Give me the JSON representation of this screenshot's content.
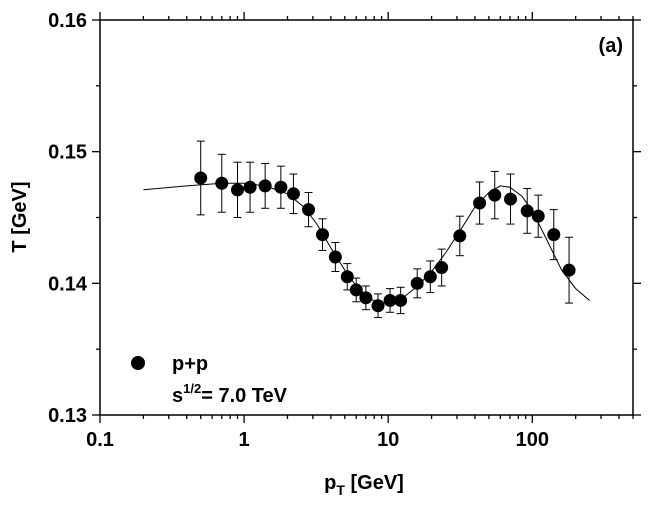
{
  "chart_data": {
    "type": "scatter",
    "panel_label": "(a)",
    "xscale": "log",
    "xlim": [
      0.1,
      500
    ],
    "ylim": [
      0.13,
      0.16
    ],
    "xlabel": {
      "main": "p",
      "sub": "T",
      "rest": " [GeV]"
    },
    "ylabel": "T [GeV]",
    "x_ticks": [
      0.1,
      1,
      10,
      100
    ],
    "x_tick_labels": [
      "0.1",
      "1",
      "10",
      "100"
    ],
    "y_ticks": [
      0.13,
      0.14,
      0.15,
      0.16
    ],
    "y_tick_labels": [
      "0.13",
      "0.14",
      "0.15",
      "0.16"
    ],
    "legend": {
      "label": "p+p",
      "energy_main": "s",
      "energy_sup": "1/2",
      "energy_rest": "= 7.0 TeV",
      "position": "bottom-left"
    },
    "series": [
      {
        "name": "p+p",
        "x": [
          0.5,
          0.7,
          0.9,
          1.1,
          1.4,
          1.8,
          2.2,
          2.8,
          3.5,
          4.3,
          5.2,
          6.0,
          7.0,
          8.5,
          10.3,
          12.2,
          15.9,
          19.6,
          23.5,
          31.4,
          43.1,
          54.9,
          70.6,
          92.2,
          110,
          141,
          180
        ],
        "y": [
          0.148,
          0.1476,
          0.1471,
          0.1473,
          0.1474,
          0.1473,
          0.1468,
          0.1456,
          0.1437,
          0.142,
          0.1405,
          0.1395,
          0.1389,
          0.1383,
          0.1387,
          0.1387,
          0.14,
          0.1405,
          0.1412,
          0.1436,
          0.1461,
          0.1467,
          0.1464,
          0.1455,
          0.1451,
          0.1437,
          0.141
        ],
        "err": [
          0.0028,
          0.0022,
          0.0021,
          0.0019,
          0.0017,
          0.0016,
          0.0015,
          0.0013,
          0.0012,
          0.0011,
          0.001,
          0.0009,
          0.0009,
          0.0009,
          0.0009,
          0.001,
          0.0011,
          0.0012,
          0.0014,
          0.0015,
          0.0016,
          0.0018,
          0.0019,
          0.0017,
          0.0016,
          0.0019,
          0.0025
        ]
      }
    ],
    "fit_curve": {
      "name": "fit",
      "x": [
        0.2,
        0.4,
        0.7,
        1.0,
        1.4,
        2.0,
        2.6,
        3.2,
        4.0,
        5.0,
        6.0,
        7.5,
        9.0,
        11,
        13,
        16,
        20,
        25,
        32,
        40,
        50,
        60,
        70,
        85,
        100,
        125,
        160,
        200,
        250
      ],
      "y": [
        0.1471,
        0.1474,
        0.1476,
        0.1476,
        0.1474,
        0.1468,
        0.1458,
        0.1445,
        0.1427,
        0.141,
        0.1398,
        0.1388,
        0.1385,
        0.1386,
        0.139,
        0.1398,
        0.1409,
        0.1423,
        0.1441,
        0.1458,
        0.1469,
        0.1474,
        0.1473,
        0.1466,
        0.1455,
        0.1434,
        0.141,
        0.1396,
        0.1387
      ]
    }
  }
}
